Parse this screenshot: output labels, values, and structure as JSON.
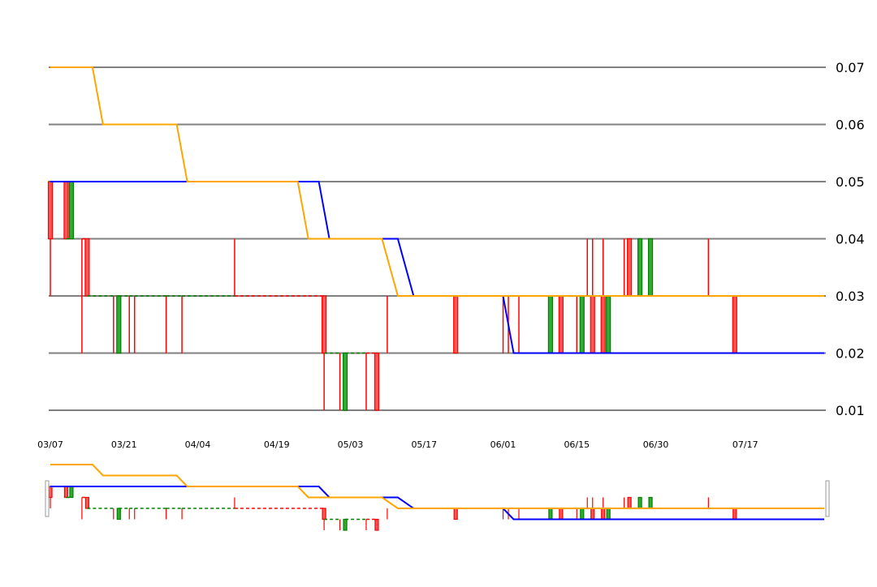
{
  "chart_data": {
    "type": "line",
    "title": "",
    "xlabel": "",
    "ylabel": "",
    "ylim": [
      0.01,
      0.07
    ],
    "y_ticks": [
      "0.07",
      "0.06",
      "0.05",
      "0.04",
      "0.03",
      "0.02",
      "0.01"
    ],
    "x_ticks": [
      "03/07",
      "03/21",
      "04/04",
      "04/19",
      "05/03",
      "05/17",
      "06/01",
      "06/15",
      "06/30",
      "07/17"
    ],
    "x_range": [
      "03/07",
      "08/01"
    ],
    "grid": true,
    "y_axis_side": "right",
    "has_navigator": true,
    "series": [
      {
        "color": "#0000ff",
        "points": [
          [
            "03/07",
            0.05
          ],
          [
            "04/27",
            0.05
          ],
          [
            "04/29",
            0.04
          ],
          [
            "05/12",
            0.04
          ],
          [
            "05/15",
            0.03
          ],
          [
            "06/01",
            0.03
          ],
          [
            "06/03",
            0.02
          ],
          [
            "08/01",
            0.02
          ]
        ]
      },
      {
        "color": "#ffa500",
        "points": [
          [
            "03/07",
            0.07
          ],
          [
            "03/15",
            0.07
          ],
          [
            "03/17",
            0.06
          ],
          [
            "03/31",
            0.06
          ],
          [
            "04/02",
            0.05
          ],
          [
            "04/23",
            0.05
          ],
          [
            "04/25",
            0.04
          ],
          [
            "05/09",
            0.04
          ],
          [
            "05/12",
            0.03
          ],
          [
            "08/01",
            0.03
          ]
        ]
      }
    ],
    "candles": [
      {
        "x": "03/07",
        "low": 0.03,
        "high": 0.05,
        "open": 0.05,
        "close": 0.04
      },
      {
        "x": "03/10",
        "low": 0.04,
        "high": 0.05,
        "open": 0.05,
        "close": 0.04
      },
      {
        "x": "03/11",
        "low": 0.04,
        "high": 0.05,
        "open": 0.04,
        "close": 0.05
      },
      {
        "x": "03/13",
        "low": 0.02,
        "high": 0.04,
        "open": 0.04,
        "close": 0.04
      },
      {
        "x": "03/14",
        "low": 0.03,
        "high": 0.04,
        "open": 0.04,
        "close": 0.03
      },
      {
        "x": "03/19",
        "low": 0.02,
        "high": 0.03,
        "open": 0.03,
        "close": 0.03
      },
      {
        "x": "03/20",
        "low": 0.02,
        "high": 0.03,
        "open": 0.02,
        "close": 0.03
      },
      {
        "x": "03/22",
        "low": 0.02,
        "high": 0.03,
        "open": 0.03,
        "close": 0.03
      },
      {
        "x": "03/23",
        "low": 0.02,
        "high": 0.03,
        "open": 0.03,
        "close": 0.03
      },
      {
        "x": "03/29",
        "low": 0.02,
        "high": 0.03,
        "open": 0.03,
        "close": 0.03
      },
      {
        "x": "04/01",
        "low": 0.02,
        "high": 0.03,
        "open": 0.03,
        "close": 0.03
      },
      {
        "x": "04/11",
        "low": 0.03,
        "high": 0.04,
        "open": 0.03,
        "close": 0.03
      },
      {
        "x": "04/28",
        "low": 0.01,
        "high": 0.03,
        "open": 0.03,
        "close": 0.02
      },
      {
        "x": "05/01",
        "low": 0.01,
        "high": 0.02,
        "open": 0.02,
        "close": 0.02
      },
      {
        "x": "05/02",
        "low": 0.01,
        "high": 0.02,
        "open": 0.01,
        "close": 0.02
      },
      {
        "x": "05/06",
        "low": 0.01,
        "high": 0.02,
        "open": 0.02,
        "close": 0.02
      },
      {
        "x": "05/08",
        "low": 0.01,
        "high": 0.02,
        "open": 0.02,
        "close": 0.01
      },
      {
        "x": "05/10",
        "low": 0.02,
        "high": 0.03,
        "open": 0.02,
        "close": 0.02
      },
      {
        "x": "05/23",
        "low": 0.02,
        "high": 0.03,
        "open": 0.03,
        "close": 0.02
      },
      {
        "x": "06/01",
        "low": 0.02,
        "high": 0.03,
        "open": 0.03,
        "close": 0.03
      },
      {
        "x": "06/02",
        "low": 0.02,
        "high": 0.03,
        "open": 0.03,
        "close": 0.03
      },
      {
        "x": "06/04",
        "low": 0.02,
        "high": 0.03,
        "open": 0.03,
        "close": 0.03
      },
      {
        "x": "06/10",
        "low": 0.02,
        "high": 0.03,
        "open": 0.02,
        "close": 0.03
      },
      {
        "x": "06/12",
        "low": 0.02,
        "high": 0.03,
        "open": 0.03,
        "close": 0.02
      },
      {
        "x": "06/15",
        "low": 0.02,
        "high": 0.03,
        "open": 0.03,
        "close": 0.03
      },
      {
        "x": "06/16",
        "low": 0.02,
        "high": 0.03,
        "open": 0.02,
        "close": 0.03
      },
      {
        "x": "06/17",
        "low": 0.03,
        "high": 0.04,
        "open": 0.03,
        "close": 0.03
      },
      {
        "x": "06/18",
        "low": 0.02,
        "high": 0.04,
        "open": 0.03,
        "close": 0.02
      },
      {
        "x": "06/20",
        "low": 0.02,
        "high": 0.04,
        "open": 0.03,
        "close": 0.02
      },
      {
        "x": "06/21",
        "low": 0.02,
        "high": 0.03,
        "open": 0.02,
        "close": 0.03
      },
      {
        "x": "06/24",
        "low": 0.03,
        "high": 0.04,
        "open": 0.03,
        "close": 0.03
      },
      {
        "x": "06/25",
        "low": 0.03,
        "high": 0.04,
        "open": 0.04,
        "close": 0.03
      },
      {
        "x": "06/27",
        "low": 0.03,
        "high": 0.04,
        "open": 0.03,
        "close": 0.04
      },
      {
        "x": "06/29",
        "low": 0.03,
        "high": 0.04,
        "open": 0.03,
        "close": 0.04
      },
      {
        "x": "07/10",
        "low": 0.03,
        "high": 0.04,
        "open": 0.03,
        "close": 0.03
      },
      {
        "x": "07/15",
        "low": 0.02,
        "high": 0.03,
        "open": 0.03,
        "close": 0.02
      }
    ],
    "colors": {
      "up": "#008000",
      "down": "#ff0000",
      "up_fill": "#33aa33",
      "down_fill": "#ff5555",
      "grid": "#808080",
      "navigator_handle": "#999999"
    }
  }
}
